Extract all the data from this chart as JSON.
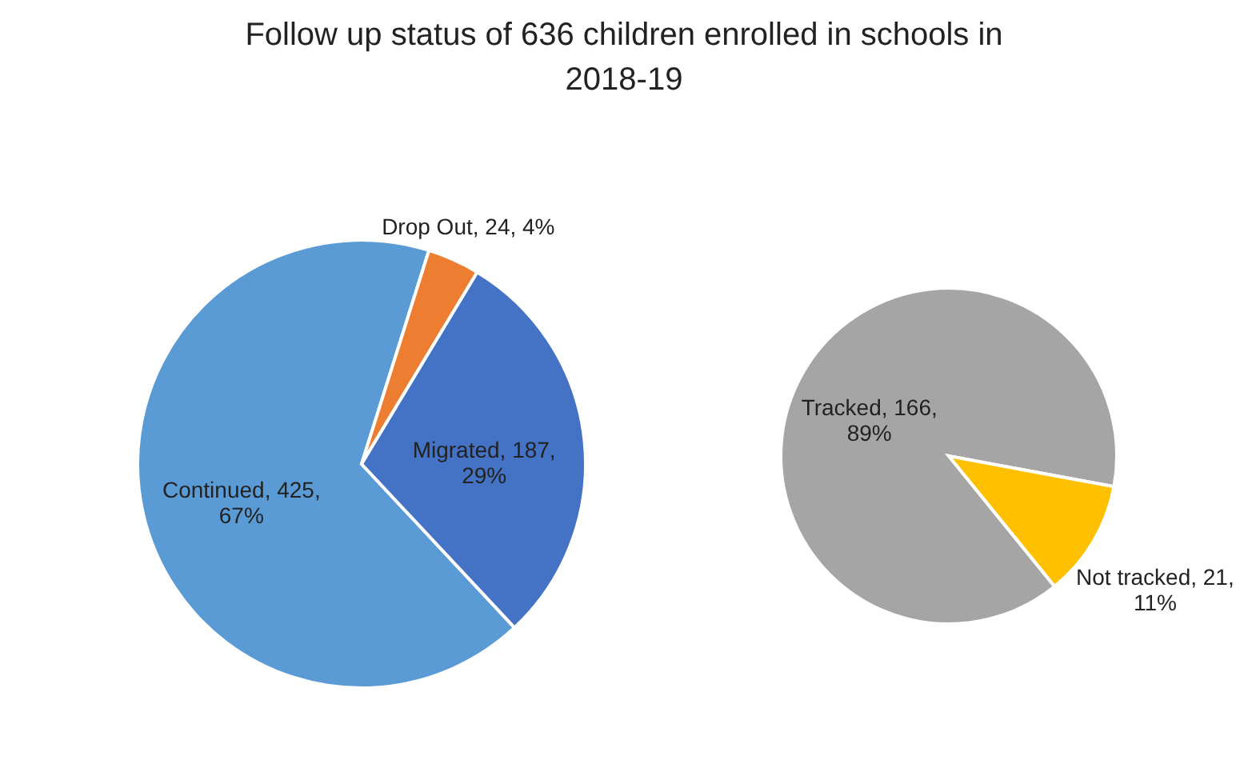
{
  "chart_data": [
    {
      "type": "pie",
      "title": "Follow up status of 636 children enrolled in schools in 2018-19",
      "categories": [
        "Continued",
        "Drop Out",
        "Migrated"
      ],
      "values": [
        425,
        24,
        187
      ],
      "colors": [
        "#5b9bd5",
        "#ed7d31",
        "#4472c4"
      ],
      "value_labels": [
        "425, 67%",
        "24, 4%",
        "187, 29%"
      ]
    },
    {
      "type": "pie",
      "categories": [
        "Tracked",
        "Not tracked"
      ],
      "values": [
        166,
        21
      ],
      "colors": [
        "#a5a5a5",
        "#ffc000"
      ],
      "value_labels": [
        "166, 89%",
        "21, 11%"
      ]
    }
  ]
}
